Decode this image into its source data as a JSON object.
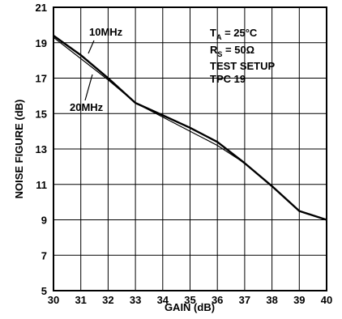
{
  "chart_data": {
    "type": "line",
    "xlabel": "GAIN (dB)",
    "ylabel": "NOISE FIGURE (dB)",
    "xlim": [
      30,
      40
    ],
    "ylim": [
      5,
      21
    ],
    "x_ticks": [
      30,
      31,
      32,
      33,
      34,
      35,
      36,
      37,
      38,
      39,
      40
    ],
    "y_ticks": [
      5,
      7,
      9,
      11,
      13,
      15,
      17,
      19,
      21
    ],
    "grid": true,
    "series": [
      {
        "name": "10MHz",
        "x": [
          30,
          31,
          32,
          33,
          34,
          35,
          36,
          37,
          38,
          39,
          40
        ],
        "y": [
          19.4,
          18.3,
          17.0,
          15.6,
          14.9,
          14.2,
          13.4,
          12.2,
          10.9,
          9.5,
          9.0
        ]
      },
      {
        "name": "20MHz",
        "x": [
          30,
          31,
          32,
          33,
          34,
          35,
          36,
          37,
          38,
          39,
          40
        ],
        "y": [
          19.3,
          18.1,
          16.9,
          15.6,
          14.8,
          14.0,
          13.2,
          12.2,
          10.9,
          9.5,
          9.0
        ]
      }
    ],
    "annotations": {
      "ta_main": "T",
      "ta_sub": "A",
      "ta_rest": " = 25°C",
      "rs_main": "R",
      "rs_sub": "S",
      "rs_rest": " = 50Ω",
      "setup": "TEST SETUP",
      "tpc": "TPC 19"
    }
  }
}
